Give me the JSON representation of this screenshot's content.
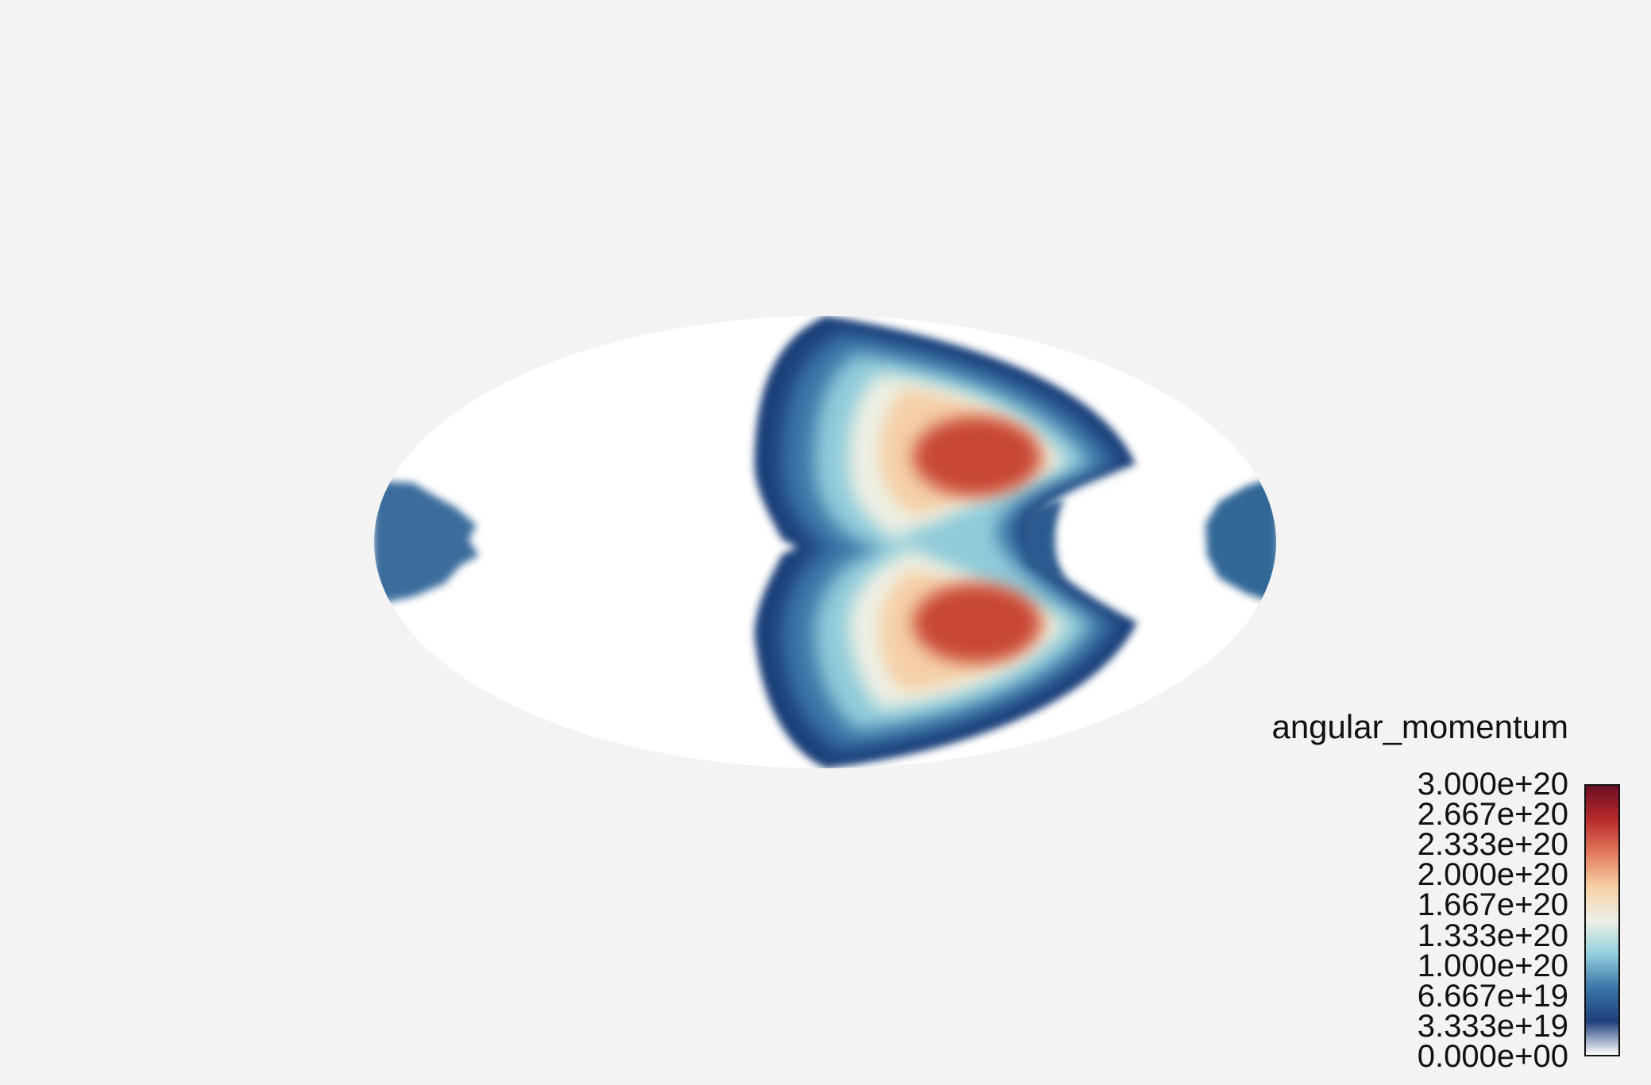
{
  "chart_data": {
    "type": "heatmap",
    "projection": "mollweide",
    "field": "angular_momentum",
    "colormap": "RdYlBu_r",
    "color_range": [
      0,
      3e+20
    ],
    "colors": {
      "background": "#f3f3f3",
      "zero": "#ffffff",
      "stops": [
        "#ffffff",
        "#1e3f7b",
        "#3a76a8",
        "#92cfdc",
        "#eef0e6",
        "#f7cfa4",
        "#e27a5e",
        "#b72a2b",
        "#6c0f24"
      ]
    },
    "colorbar": {
      "title": "angular_momentum",
      "position": "bottom-right",
      "orientation": "vertical",
      "ticks": [
        "3.000e+20",
        "2.667e+20",
        "2.333e+20",
        "2.000e+20",
        "1.667e+20",
        "1.333e+20",
        "1.000e+20",
        "6.667e+19",
        "3.333e+19",
        "0.000e+00"
      ]
    }
  }
}
